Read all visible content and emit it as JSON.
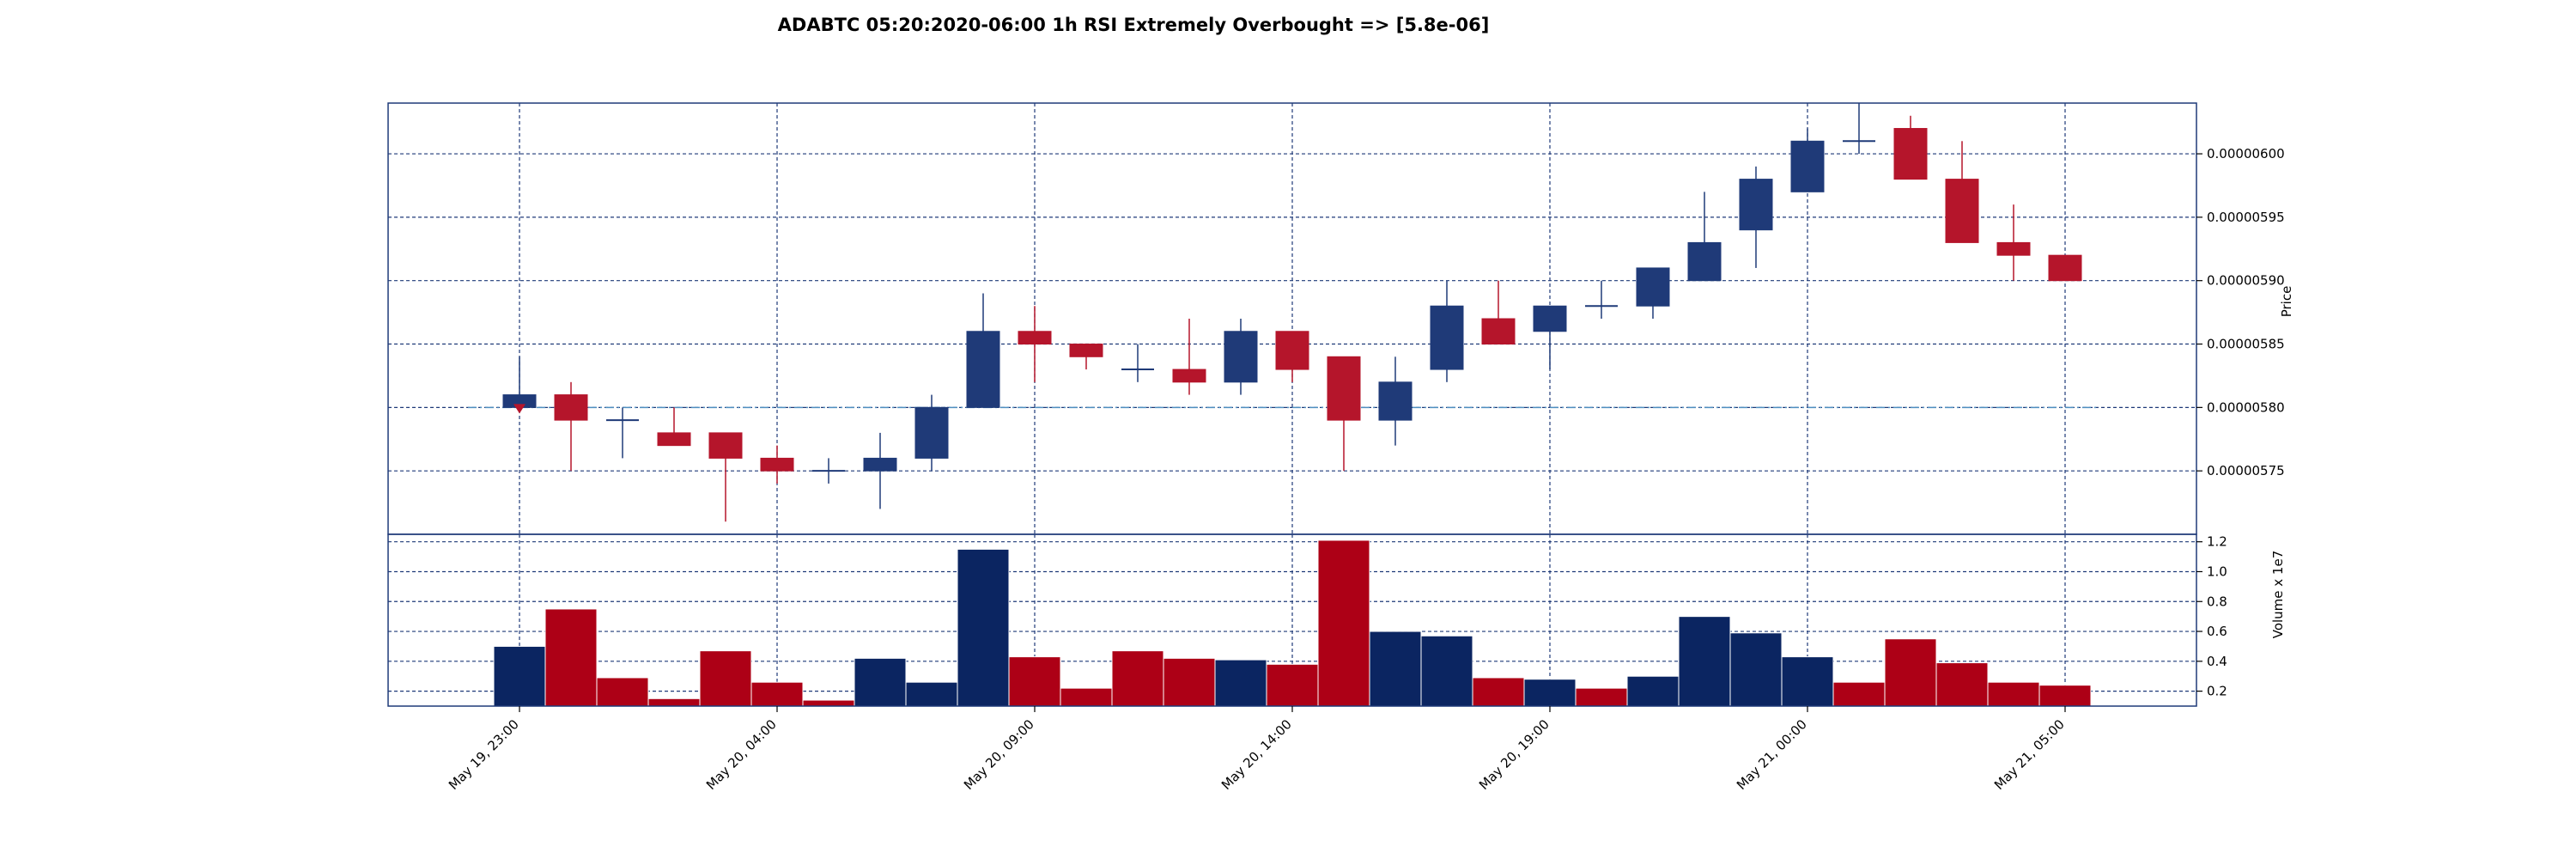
{
  "chart_data": [
    {
      "type": "candlestick",
      "title": "ADABTC 05:20:2020-06:00 1h RSI Extremely Overbought => [5.8e-06]",
      "ylabel": "Price",
      "ylim": [
        5.7e-06,
        6.04e-06
      ],
      "yticks": [
        "0.00000575",
        "0.00000580",
        "0.00000585",
        "0.00000590",
        "0.00000595",
        "0.00000600"
      ],
      "ytick_values": [
        5.75e-06,
        5.8e-06,
        5.85e-06,
        5.9e-06,
        5.95e-06,
        6e-06
      ],
      "reference_line": 5.8e-06,
      "signal_marker": {
        "index": 0,
        "value": 5.8e-06
      },
      "grid": true,
      "up_color": "#1f3a78",
      "down_color": "#b5152b",
      "reference_color": "#4f8fc0",
      "candles": [
        {
          "o": 5.8e-06,
          "h": 5.84e-06,
          "l": 5.8e-06,
          "c": 5.81e-06
        },
        {
          "o": 5.81e-06,
          "h": 5.82e-06,
          "l": 5.75e-06,
          "c": 5.79e-06
        },
        {
          "o": 5.79e-06,
          "h": 5.8e-06,
          "l": 5.76e-06,
          "c": 5.79e-06
        },
        {
          "o": 5.78e-06,
          "h": 5.8e-06,
          "l": 5.77e-06,
          "c": 5.77e-06
        },
        {
          "o": 5.78e-06,
          "h": 5.78e-06,
          "l": 5.71e-06,
          "c": 5.76e-06
        },
        {
          "o": 5.76e-06,
          "h": 5.77e-06,
          "l": 5.74e-06,
          "c": 5.75e-06
        },
        {
          "o": 5.75e-06,
          "h": 5.76e-06,
          "l": 5.74e-06,
          "c": 5.75e-06
        },
        {
          "o": 5.75e-06,
          "h": 5.78e-06,
          "l": 5.72e-06,
          "c": 5.76e-06
        },
        {
          "o": 5.76e-06,
          "h": 5.81e-06,
          "l": 5.75e-06,
          "c": 5.8e-06
        },
        {
          "o": 5.8e-06,
          "h": 5.89e-06,
          "l": 5.8e-06,
          "c": 5.86e-06
        },
        {
          "o": 5.86e-06,
          "h": 5.88e-06,
          "l": 5.82e-06,
          "c": 5.85e-06
        },
        {
          "o": 5.85e-06,
          "h": 5.85e-06,
          "l": 5.83e-06,
          "c": 5.84e-06
        },
        {
          "o": 5.83e-06,
          "h": 5.85e-06,
          "l": 5.82e-06,
          "c": 5.83e-06
        },
        {
          "o": 5.83e-06,
          "h": 5.87e-06,
          "l": 5.81e-06,
          "c": 5.82e-06
        },
        {
          "o": 5.82e-06,
          "h": 5.87e-06,
          "l": 5.81e-06,
          "c": 5.86e-06
        },
        {
          "o": 5.86e-06,
          "h": 5.86e-06,
          "l": 5.82e-06,
          "c": 5.83e-06
        },
        {
          "o": 5.84e-06,
          "h": 5.84e-06,
          "l": 5.75e-06,
          "c": 5.79e-06
        },
        {
          "o": 5.79e-06,
          "h": 5.84e-06,
          "l": 5.77e-06,
          "c": 5.82e-06
        },
        {
          "o": 5.83e-06,
          "h": 5.9e-06,
          "l": 5.82e-06,
          "c": 5.88e-06
        },
        {
          "o": 5.87e-06,
          "h": 5.9e-06,
          "l": 5.85e-06,
          "c": 5.85e-06
        },
        {
          "o": 5.86e-06,
          "h": 5.88e-06,
          "l": 5.83e-06,
          "c": 5.88e-06
        },
        {
          "o": 5.88e-06,
          "h": 5.9e-06,
          "l": 5.87e-06,
          "c": 5.88e-06
        },
        {
          "o": 5.88e-06,
          "h": 5.91e-06,
          "l": 5.87e-06,
          "c": 5.91e-06
        },
        {
          "o": 5.9e-06,
          "h": 5.97e-06,
          "l": 5.9e-06,
          "c": 5.93e-06
        },
        {
          "o": 5.94e-06,
          "h": 5.99e-06,
          "l": 5.91e-06,
          "c": 5.98e-06
        },
        {
          "o": 5.97e-06,
          "h": 6.02e-06,
          "l": 5.97e-06,
          "c": 6.01e-06
        },
        {
          "o": 6.01e-06,
          "h": 6.04e-06,
          "l": 6e-06,
          "c": 6.01e-06
        },
        {
          "o": 6.02e-06,
          "h": 6.03e-06,
          "l": 5.98e-06,
          "c": 5.98e-06
        },
        {
          "o": 5.98e-06,
          "h": 6.01e-06,
          "l": 5.93e-06,
          "c": 5.93e-06
        },
        {
          "o": 5.93e-06,
          "h": 5.96e-06,
          "l": 5.9e-06,
          "c": 5.92e-06
        },
        {
          "o": 5.92e-06,
          "h": 5.92e-06,
          "l": 5.9e-06,
          "c": 5.9e-06
        }
      ]
    },
    {
      "type": "bar",
      "ylabel": "Volume x 1e7",
      "ylim": [
        0.1,
        1.25
      ],
      "yticks": [
        "0.2",
        "0.4",
        "0.6",
        "0.8",
        "1.0",
        "1.2"
      ],
      "ytick_values": [
        0.2,
        0.4,
        0.6,
        0.8,
        1.0,
        1.2
      ],
      "grid": true,
      "up_color": "#0b2561",
      "down_color": "#ad0016",
      "values": [
        0.5,
        0.75,
        0.29,
        0.15,
        0.47,
        0.26,
        0.14,
        0.42,
        0.26,
        1.15,
        0.43,
        0.22,
        0.47,
        0.42,
        0.41,
        0.38,
        1.21,
        0.6,
        0.57,
        0.29,
        0.28,
        0.22,
        0.3,
        0.7,
        0.59,
        0.43,
        0.26,
        0.55,
        0.39,
        0.26,
        0.24
      ],
      "directions": [
        "up",
        "down",
        "down",
        "down",
        "down",
        "down",
        "down",
        "up",
        "up",
        "up",
        "down",
        "down",
        "down",
        "down",
        "up",
        "down",
        "down",
        "up",
        "up",
        "down",
        "up",
        "down",
        "up",
        "up",
        "up",
        "up",
        "down",
        "down",
        "down",
        "down",
        "down"
      ]
    }
  ],
  "xaxis": {
    "tick_indices": [
      0,
      5,
      10,
      15,
      20,
      25,
      30
    ],
    "tick_labels": [
      "May 19, 23:00",
      "May 20, 04:00",
      "May 20, 09:00",
      "May 20, 14:00",
      "May 20, 19:00",
      "May 21, 00:00",
      "May 21, 05:00"
    ]
  }
}
